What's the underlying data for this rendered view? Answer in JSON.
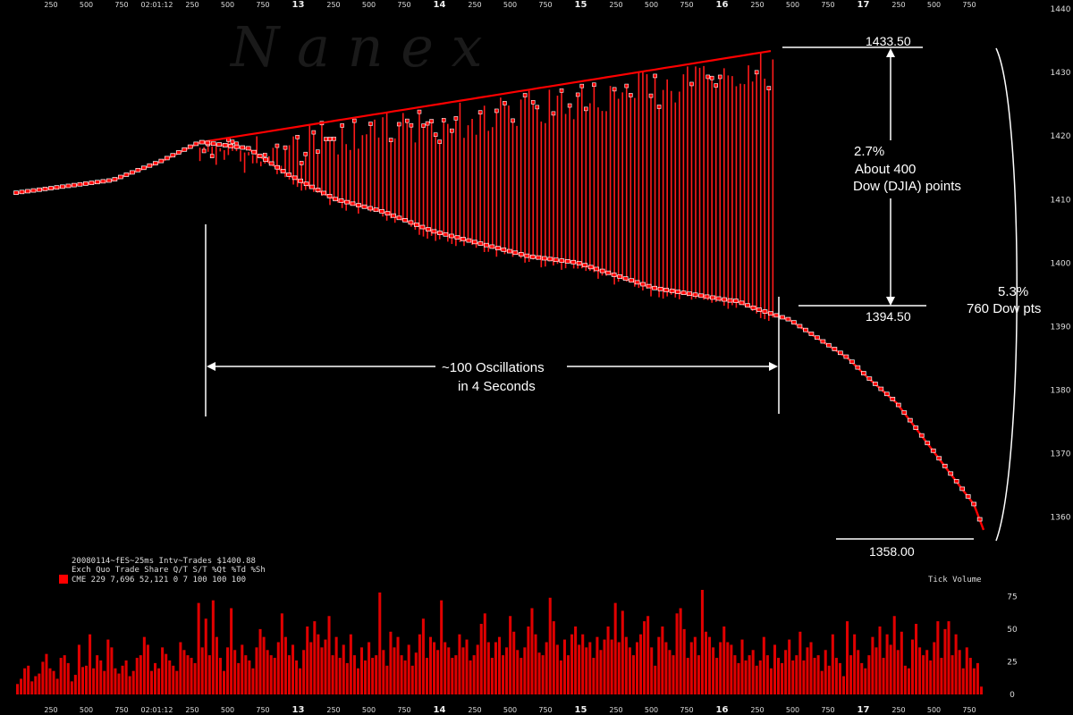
{
  "watermark": "N a n e x",
  "info": {
    "line1": "20080114~fES~25ms Intv~Trades $1400.88",
    "line2": "Exch Quo Trade  Share  Q/T   S/T  %Qt %Td %Sh",
    "line3": "CME 229 7,696 52,121    0     7 100 100 100",
    "legend_color": "#ff0000"
  },
  "volume_label": "Tick Volume",
  "annotations": {
    "high_price": "1433.50",
    "mid_price": "1394.50",
    "low_price": "1358.00",
    "pct_small": "2.7%",
    "about_line1": "About 400",
    "about_line2": "Dow (DJIA) points",
    "pct_large": "5.3%",
    "dow_large": "760 Dow pts",
    "osc_line1": "~100 Oscillations",
    "osc_line2": "in 4 Seconds"
  },
  "chart_data": [
    {
      "type": "line",
      "series": [
        {
          "name": "",
          "color": "#ff0000"
        }
      ],
      "yaxis": {
        "ticks": [
          "1360",
          "1370",
          "1380",
          "1390",
          "1400",
          "1410",
          "1420",
          "1430",
          "1440"
        ],
        "ylim": [
          1357,
          1440
        ]
      },
      "xaxis": {
        "tick_labels": [
          "250",
          "500",
          "750",
          "02:01:12",
          "250",
          "500",
          "750",
          "13",
          "250",
          "500",
          "750",
          "14",
          "250",
          "500",
          "750",
          "15",
          "250",
          "500",
          "750",
          "16",
          "250",
          "500",
          "750",
          "17",
          "250",
          "500",
          "750"
        ],
        "bold_labels": [
          "13",
          "14",
          "15",
          "16",
          "17"
        ]
      },
      "trend": {
        "x": [
          0,
          0.05,
          0.1,
          0.15,
          0.19,
          0.24,
          0.28,
          0.33,
          0.38,
          0.43,
          0.48,
          0.53,
          0.58,
          0.62,
          0.66,
          0.7,
          0.74,
          0.745,
          0.76,
          0.8,
          0.83,
          0.86,
          0.88,
          0.91,
          0.93,
          0.95,
          0.97,
          0.99,
          1.0
        ],
        "y": [
          1411,
          1412,
          1413,
          1416,
          1419,
          1418,
          1414,
          1410,
          1408,
          1405,
          1403,
          1401,
          1400,
          1398,
          1396,
          1395,
          1394,
          1394,
          1393,
          1391,
          1388,
          1385,
          1382,
          1378,
          1374,
          1370,
          1366,
          1362,
          1358
        ]
      },
      "range": {
        "high": 1433.5,
        "mid_level": 1394.5,
        "low": 1358.0
      }
    },
    {
      "type": "bar",
      "title": "",
      "yaxis": {
        "ticks": [
          "0",
          "25",
          "50",
          "75"
        ],
        "ylim": [
          0,
          80
        ]
      },
      "values": [
        8,
        12,
        20,
        22,
        10,
        14,
        16,
        25,
        31,
        20,
        18,
        12,
        28,
        30,
        24,
        10,
        15,
        38,
        21,
        22,
        46,
        20,
        30,
        26,
        18,
        42,
        36,
        20,
        16,
        22,
        26,
        14,
        18,
        28,
        30,
        44,
        38,
        18,
        24,
        20,
        36,
        31,
        26,
        22,
        18,
        40,
        34,
        30,
        28,
        24,
        70,
        36,
        58,
        30,
        72,
        44,
        28,
        18,
        36,
        66,
        34,
        24,
        38,
        30,
        26,
        20,
        36,
        50,
        44,
        34,
        30,
        28,
        40,
        62,
        44,
        30,
        38,
        26,
        20,
        34,
        52,
        40,
        56,
        46,
        36,
        42,
        60,
        30,
        44,
        28,
        38,
        24,
        46,
        30,
        20,
        36,
        26,
        40,
        28,
        30,
        78,
        34,
        22,
        48,
        36,
        44,
        30,
        26,
        38,
        22,
        32,
        46,
        58,
        28,
        44,
        40,
        34,
        72,
        40,
        36,
        28,
        30,
        46,
        36,
        42,
        26,
        30,
        38,
        54,
        62,
        40,
        28,
        40,
        44,
        30,
        36,
        60,
        48,
        34,
        28,
        36,
        52,
        66,
        46,
        32,
        30,
        40,
        74,
        56,
        38,
        26,
        42,
        30,
        46,
        52,
        38,
        46,
        36,
        40,
        28,
        44,
        34,
        42,
        52,
        42,
        70,
        40,
        64,
        44,
        36,
        30,
        40,
        46,
        56,
        60,
        36,
        22,
        44,
        52,
        40,
        34,
        30,
        62,
        66,
        50,
        28,
        40,
        44,
        30,
        80,
        48,
        44,
        36,
        28,
        40,
        52,
        40,
        38,
        30,
        24,
        42,
        26,
        30,
        34,
        22,
        26,
        44,
        30,
        20,
        38,
        28,
        24,
        34,
        42,
        26,
        30,
        48,
        26,
        36,
        40,
        28,
        30,
        18,
        34,
        22,
        46,
        28,
        24,
        14,
        56,
        30,
        46,
        34,
        24,
        20,
        30,
        44,
        36,
        52,
        28,
        46,
        38,
        60,
        34,
        48,
        22,
        20,
        42,
        54,
        36,
        30,
        34,
        26,
        40,
        56,
        28,
        50,
        56,
        30,
        46,
        34,
        20,
        36,
        28,
        20,
        24,
        6
      ]
    }
  ]
}
